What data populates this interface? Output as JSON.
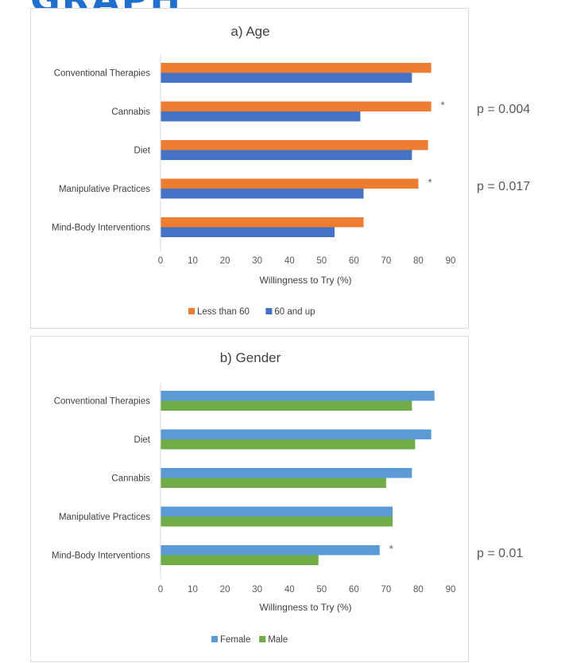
{
  "header_fragment": "GRAPH",
  "chart_data": [
    {
      "type": "bar",
      "orientation": "horizontal",
      "title": "a) Age",
      "xlabel": "Willingness to Try (%)",
      "ylabel": "",
      "xlim": [
        0,
        90
      ],
      "xticks": [
        "0",
        "10",
        "20",
        "30",
        "40",
        "50",
        "60",
        "70",
        "80",
        "90"
      ],
      "grid": false,
      "legend_position": "bottom",
      "categories": [
        "Conventional Therapies",
        "Cannabis",
        "Diet",
        "Manipulative Practices",
        "Mind-Body Interventions"
      ],
      "series": [
        {
          "name": "Less than 60",
          "color": "#ed7d31",
          "values": [
            84,
            84,
            83,
            80,
            63
          ]
        },
        {
          "name": "60 and up",
          "color": "#4472c4",
          "values": [
            78,
            62,
            78,
            63,
            54
          ]
        }
      ],
      "significance": [
        {
          "category": "Cannabis",
          "marker": "*",
          "p_value": "p = 0.004"
        },
        {
          "category": "Manipulative Practices",
          "marker": "*",
          "p_value": "p = 0.017"
        }
      ]
    },
    {
      "type": "bar",
      "orientation": "horizontal",
      "title": "b) Gender",
      "xlabel": "Willingness to Try (%)",
      "ylabel": "",
      "xlim": [
        0,
        90
      ],
      "xticks": [
        "0",
        "10",
        "20",
        "30",
        "40",
        "50",
        "60",
        "70",
        "80",
        "90"
      ],
      "grid": false,
      "legend_position": "bottom",
      "categories": [
        "Conventional Therapies",
        "Diet",
        "Cannabis",
        "Manipulative Practices",
        "Mind-Body Interventions"
      ],
      "series": [
        {
          "name": "Female",
          "color": "#5b9bd5",
          "values": [
            85,
            84,
            78,
            72,
            68
          ]
        },
        {
          "name": "Male",
          "color": "#70ad47",
          "values": [
            78,
            79,
            70,
            72,
            49
          ]
        }
      ],
      "significance": [
        {
          "category": "Mind-Body Interventions",
          "marker": "*",
          "p_value": "p = 0.01"
        }
      ]
    }
  ]
}
